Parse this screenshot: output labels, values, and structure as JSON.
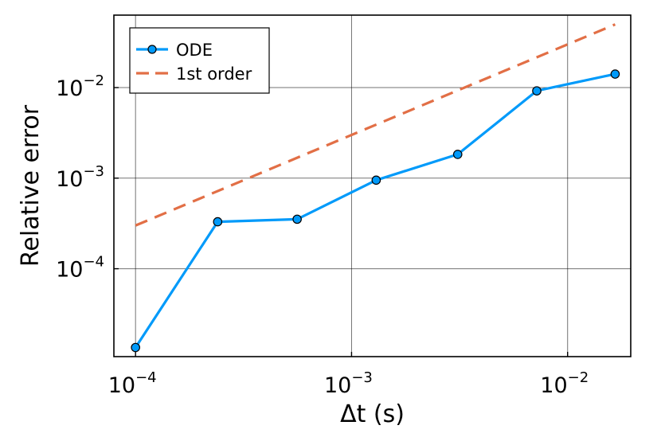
{
  "chart_data": {
    "type": "line",
    "title": "",
    "xlabel": "Δt (s)",
    "ylabel": "Relative error",
    "xscale": "log",
    "yscale": "log",
    "xlim": [
      7.94e-05,
      0.0196
    ],
    "ylim": [
      1.07e-05,
      0.0631
    ],
    "grid": true,
    "legend_position": "top-left",
    "xticks": [
      {
        "value": 0.0001,
        "base": "10",
        "exp": "−4"
      },
      {
        "value": 0.001,
        "base": "10",
        "exp": "−3"
      },
      {
        "value": 0.01,
        "base": "10",
        "exp": "−2"
      }
    ],
    "yticks": [
      {
        "value": 0.0001,
        "base": "10",
        "exp": "−4"
      },
      {
        "value": 0.001,
        "base": "10",
        "exp": "−3"
      },
      {
        "value": 0.01,
        "base": "10",
        "exp": "−2"
      }
    ],
    "series": [
      {
        "name": "ODE",
        "style": "line-with-markers",
        "color": "#009AFA",
        "x": [
          0.0001,
          0.00024,
          0.00056,
          0.0013,
          0.0031,
          0.0072,
          0.0166
        ],
        "y": [
          1.35e-05,
          0.00033,
          0.000352,
          0.00095,
          0.00183,
          0.0092,
          0.0141
        ]
      },
      {
        "name": "1st order",
        "style": "dashed",
        "color": "#E26F46",
        "x": [
          0.0001,
          0.0166
        ],
        "y": [
          0.0003,
          0.0498
        ]
      }
    ]
  }
}
